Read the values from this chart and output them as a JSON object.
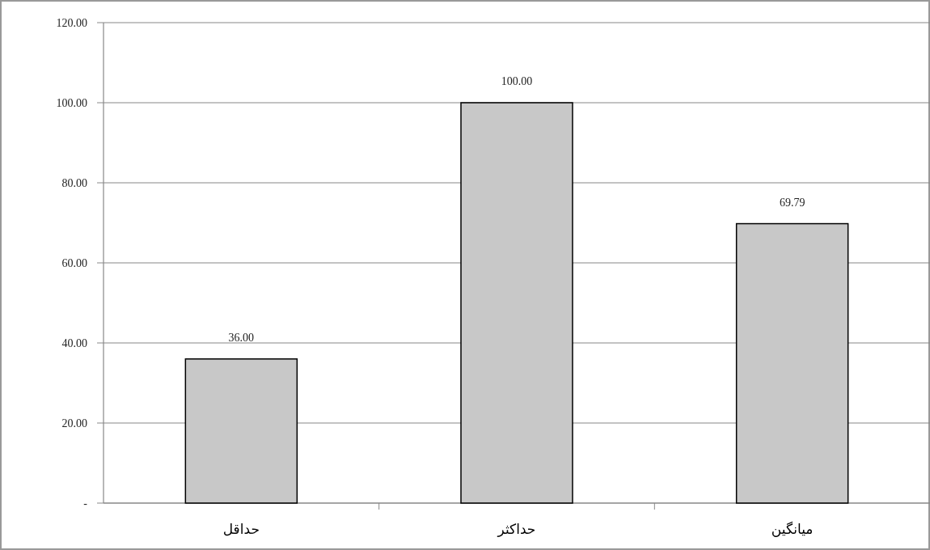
{
  "chart_data": {
    "type": "bar",
    "categories": [
      "حداقل",
      "حداکثر",
      "میانگین"
    ],
    "values": [
      36,
      100,
      69.79
    ],
    "value_labels": [
      "36.00",
      "100.00",
      "69.79"
    ],
    "color": "#c8c8c8",
    "ylim": [
      0,
      120
    ],
    "yticks": [
      {
        "value": 0,
        "label": "-"
      },
      {
        "value": 20,
        "label": "20.00"
      },
      {
        "value": 40,
        "label": "40.00"
      },
      {
        "value": 60,
        "label": "60.00"
      },
      {
        "value": 80,
        "label": "80.00"
      },
      {
        "value": 100,
        "label": "100.00"
      },
      {
        "value": 120,
        "label": "120.00"
      }
    ],
    "grid": "y"
  }
}
